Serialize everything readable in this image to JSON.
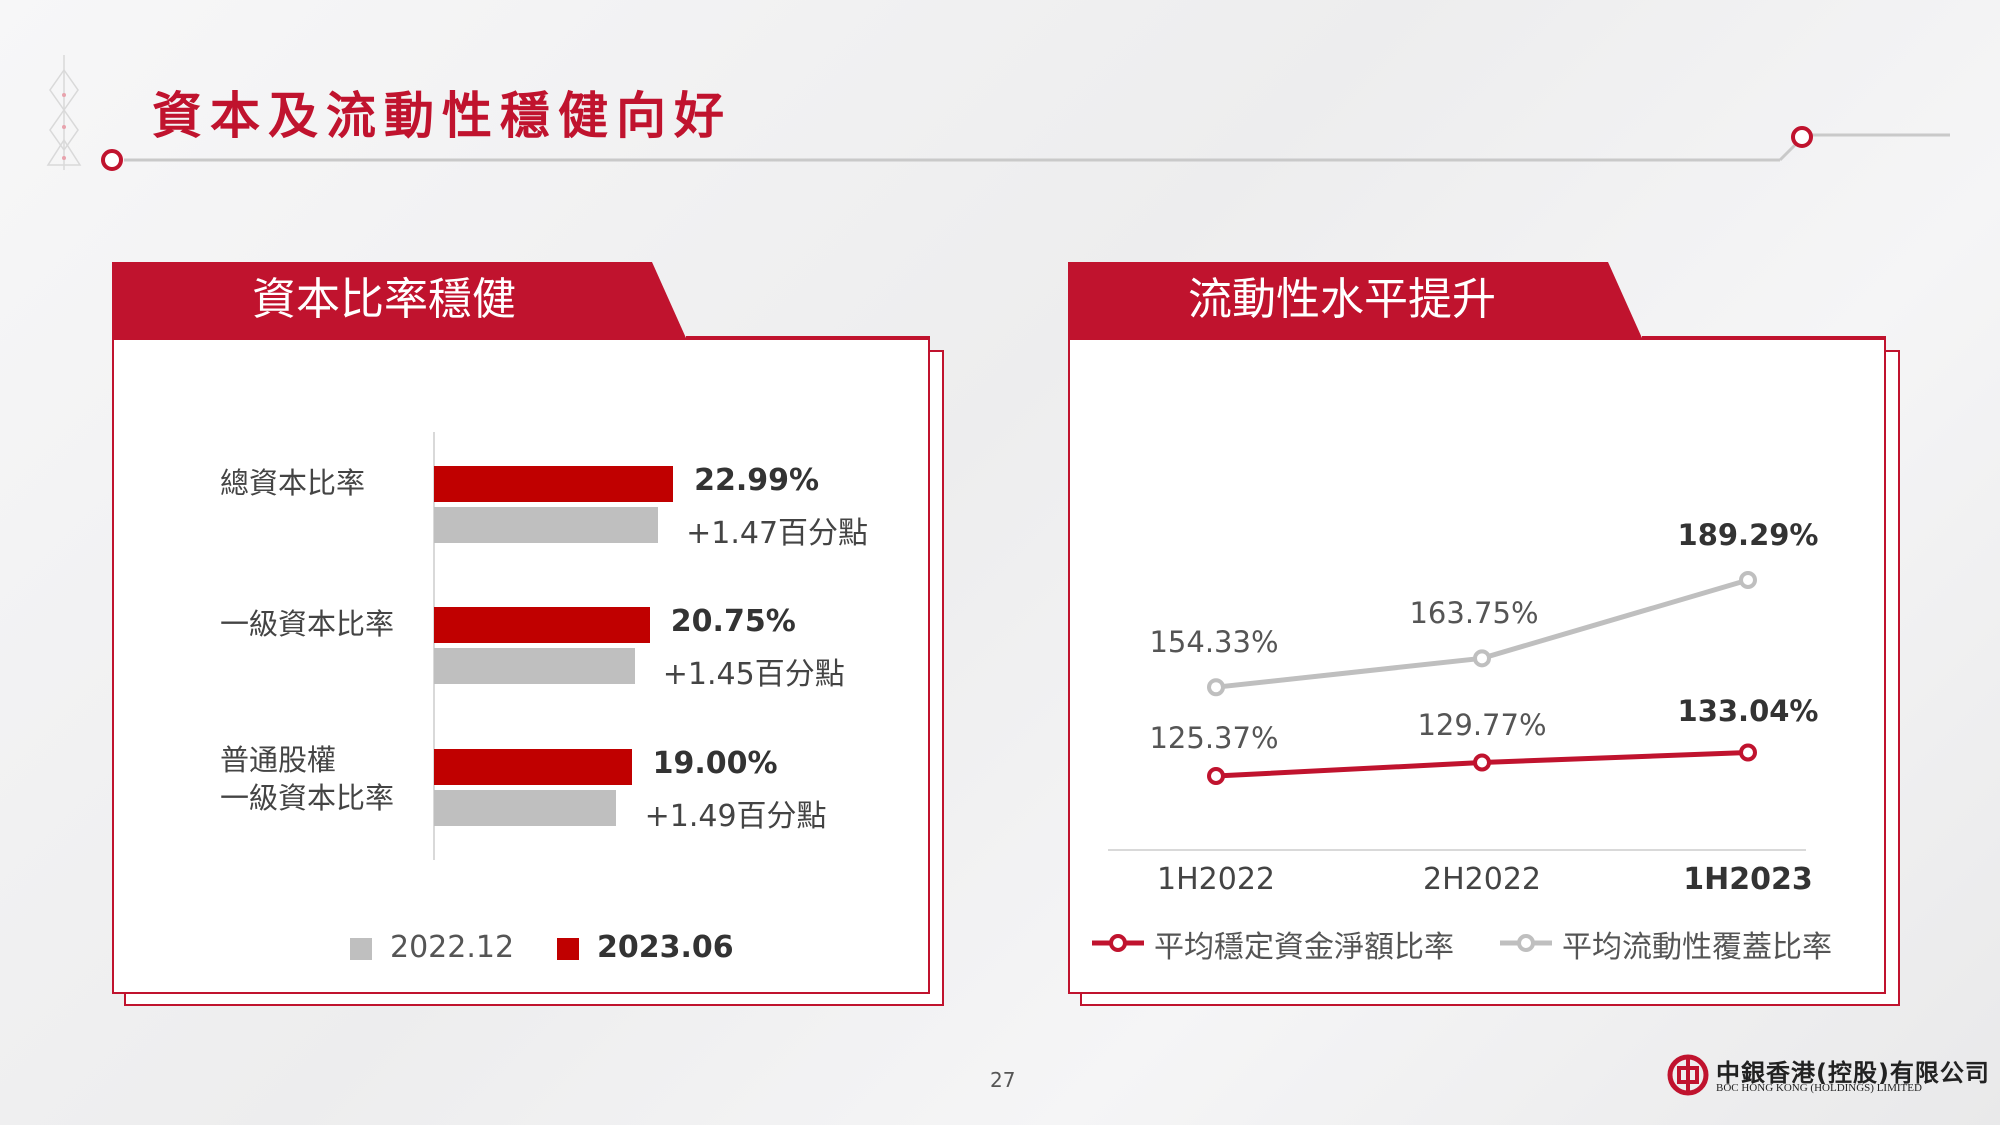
{
  "page": {
    "title": "資本及流動性穩健向好",
    "page_number": "27",
    "accent_color": "#c0132e",
    "logo": {
      "cn": "中銀香港(控股)有限公司",
      "en": "BOC HONG KONG (HOLDINGS) LIMITED"
    }
  },
  "left_panel": {
    "tab_title": "資本比率穩健",
    "chart_data": {
      "type": "bar",
      "orientation": "horizontal",
      "categories": [
        "總資本比率",
        "一級資本比率",
        "普通股權一級資本比率"
      ],
      "category_lines": [
        [
          "總資本比率"
        ],
        [
          "一級資本比率"
        ],
        [
          "普通股權",
          "一級資本比率"
        ]
      ],
      "series": [
        {
          "name": "2023.06",
          "color": "#c00000",
          "values": [
            22.99,
            20.75,
            19.0
          ]
        },
        {
          "name": "2022.12",
          "color": "#bfbfbf",
          "values": [
            21.52,
            19.3,
            17.51
          ]
        }
      ],
      "value_labels": [
        "22.99%",
        "20.75%",
        "19.00%"
      ],
      "change_labels": [
        "+1.47百分點",
        "+1.45百分點",
        "+1.49百分點"
      ],
      "legend": [
        {
          "label": "2022.12",
          "color": "#bfbfbf",
          "bold": false
        },
        {
          "label": "2023.06",
          "color": "#c00000",
          "bold": true
        }
      ],
      "legend_position": "bottom"
    }
  },
  "right_panel": {
    "tab_title": "流動性水平提升",
    "chart_data": {
      "type": "line",
      "x": [
        "1H2022",
        "2H2022",
        "1H2023"
      ],
      "series": [
        {
          "name": "平均穩定資金淨額比率",
          "color": "#c0132e",
          "values": [
            125.37,
            129.77,
            133.04
          ],
          "labels": [
            "125.37%",
            "129.77%",
            "133.04%"
          ]
        },
        {
          "name": "平均流動性覆蓋比率",
          "color": "#bfbfbf",
          "values": [
            154.33,
            163.75,
            189.29
          ],
          "labels": [
            "154.33%",
            "163.75%",
            "189.29%"
          ]
        }
      ],
      "legend_position": "bottom"
    }
  }
}
